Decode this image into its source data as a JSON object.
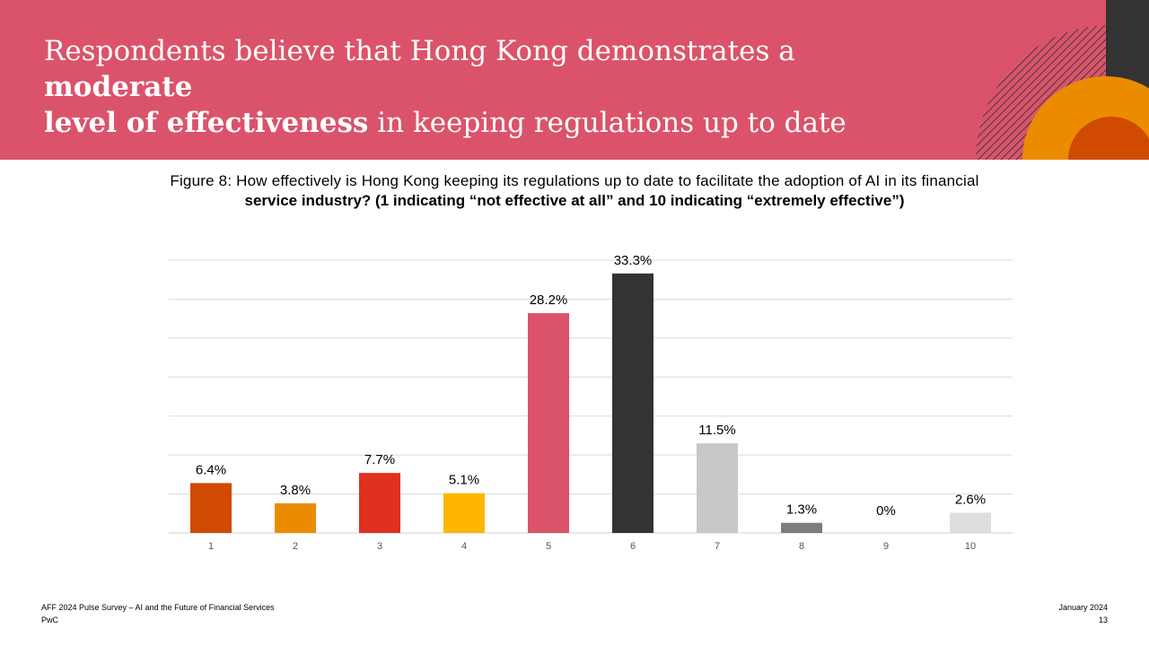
{
  "header": {
    "title_part1": "Respondents believe that Hong Kong demonstrates a ",
    "title_bold1": "moderate",
    "title_bold2": "level of effectiveness",
    "title_part2": " in keeping regulations up to date",
    "colors": {
      "band": "#db536a",
      "dark": "#333333",
      "orange": "#eb8c00",
      "red": "#d04a02"
    }
  },
  "figure": {
    "title_line1": "Figure 8: How effectively is Hong Kong keeping its regulations up to date to facilitate the adoption of AI in its financial",
    "title_line2": "service industry? (1 indicating “not effective at all” and 10 indicating “extremely effective”)"
  },
  "chart_data": {
    "type": "bar",
    "categories": [
      "1",
      "2",
      "3",
      "4",
      "5",
      "6",
      "7",
      "8",
      "9",
      "10"
    ],
    "values": [
      6.4,
      3.8,
      7.7,
      5.1,
      28.2,
      33.3,
      11.5,
      1.3,
      0,
      2.6
    ],
    "labels": [
      "6.4%",
      "3.8%",
      "7.7%",
      "5.1%",
      "28.2%",
      "33.3%",
      "11.5%",
      "1.3%",
      "0%",
      "2.6%"
    ],
    "colors": [
      "#d04a02",
      "#eb8c00",
      "#e0301e",
      "#ffb600",
      "#db536a",
      "#333333",
      "#c8c8c8",
      "#7d7d7d",
      "#bdbdbd",
      "#dedede"
    ],
    "ylim": [
      0,
      35
    ],
    "grid": true,
    "legend": "none"
  },
  "footer": {
    "survey": "AFF 2024 Pulse Survey – AI and the Future of Financial Services",
    "org": "PwC",
    "date": "January 2024",
    "page": "13"
  }
}
